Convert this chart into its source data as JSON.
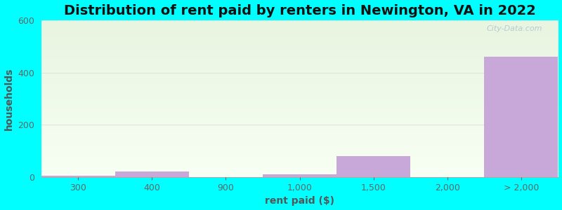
{
  "title": "Distribution of rent paid by renters in Newington, VA in 2022",
  "xlabel": "rent paid ($)",
  "ylabel": "households",
  "categories": [
    "300",
    "400",
    "900",
    "1,000",
    "1,500",
    "2,000",
    "> 2,000"
  ],
  "values": [
    5,
    20,
    0,
    10,
    80,
    0,
    460
  ],
  "bar_color": "#c8a8d8",
  "ylim": [
    0,
    600
  ],
  "yticks": [
    0,
    200,
    400,
    600
  ],
  "background_outer": "#00ffff",
  "bg_top": "#e8f5e0",
  "bg_bottom": "#f8fff4",
  "title_fontsize": 14,
  "axis_label_fontsize": 10,
  "tick_fontsize": 9,
  "watermark": "City-Data.com"
}
